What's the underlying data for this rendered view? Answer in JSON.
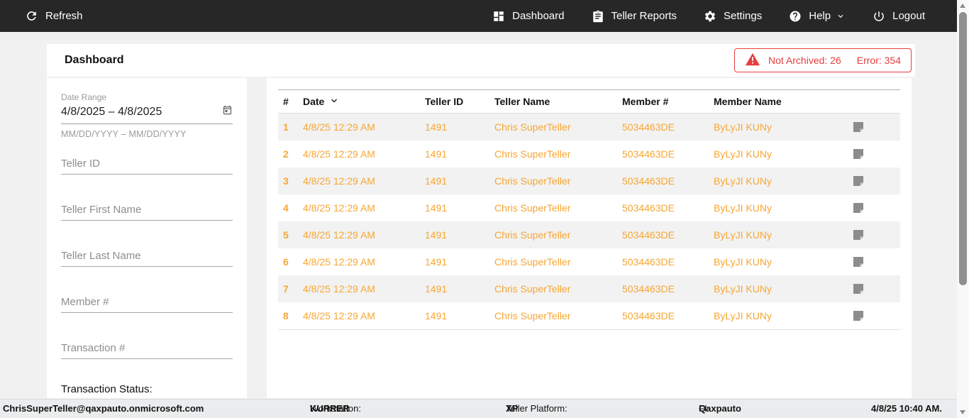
{
  "navbar": {
    "refresh_label": "Refresh",
    "dashboard_label": "Dashboard",
    "teller_reports_label": "Teller Reports",
    "settings_label": "Settings",
    "help_label": "Help",
    "logout_label": "Logout"
  },
  "header": {
    "title": "Dashboard",
    "alert": {
      "not_archived": "Not Archived: 26",
      "error": "Error: 354"
    }
  },
  "sidebar": {
    "date_range": {
      "label": "Date Range",
      "value": "4/8/2025 – 4/8/2025",
      "hint": "MM/DD/YYYY – MM/DD/YYYY"
    },
    "filters": {
      "teller_id_placeholder": "Teller ID",
      "teller_first_name_placeholder": "Teller First Name",
      "teller_last_name_placeholder": "Teller Last Name",
      "member_number_placeholder": "Member #",
      "transaction_number_placeholder": "Transaction #"
    },
    "transaction_status_label": "Transaction Status:"
  },
  "table": {
    "columns": {
      "num": "#",
      "date": "Date",
      "teller_id": "Teller ID",
      "teller_name": "Teller Name",
      "member_num": "Member #",
      "member_name": "Member Name"
    },
    "rows": [
      {
        "num": "1",
        "date": "4/8/25 12:29 AM",
        "teller_id": "1491",
        "teller_name": "Chris SuperTeller",
        "member_num": "5034463DE",
        "member_name": "ByLyJI KUNy"
      },
      {
        "num": "2",
        "date": "4/8/25 12:29 AM",
        "teller_id": "1491",
        "teller_name": "Chris SuperTeller",
        "member_num": "5034463DE",
        "member_name": "ByLyJI KUNy"
      },
      {
        "num": "3",
        "date": "4/8/25 12:29 AM",
        "teller_id": "1491",
        "teller_name": "Chris SuperTeller",
        "member_num": "5034463DE",
        "member_name": "ByLyJI KUNy"
      },
      {
        "num": "4",
        "date": "4/8/25 12:29 AM",
        "teller_id": "1491",
        "teller_name": "Chris SuperTeller",
        "member_num": "5034463DE",
        "member_name": "ByLyJI KUNy"
      },
      {
        "num": "5",
        "date": "4/8/25 12:29 AM",
        "teller_id": "1491",
        "teller_name": "Chris SuperTeller",
        "member_num": "5034463DE",
        "member_name": "ByLyJI KUNy"
      },
      {
        "num": "6",
        "date": "4/8/25 12:29 AM",
        "teller_id": "1491",
        "teller_name": "Chris SuperTeller",
        "member_num": "5034463DE",
        "member_name": "ByLyJI KUNy"
      },
      {
        "num": "7",
        "date": "4/8/25 12:29 AM",
        "teller_id": "1491",
        "teller_name": "Chris SuperTeller",
        "member_num": "5034463DE",
        "member_name": "ByLyJI KUNy"
      },
      {
        "num": "8",
        "date": "4/8/25 12:29 AM",
        "teller_id": "1491",
        "teller_name": "Chris SuperTeller",
        "member_num": "5034463DE",
        "member_name": "ByLyJI KUNy"
      }
    ]
  },
  "statusbar": {
    "user_email": "ChrisSuperTeller@qaxpauto.onmicrosoft.com",
    "workstation_label": "Workstation: ",
    "workstation_value": "KURRER",
    "platform_label": "Teller Platform: ",
    "platform_value": "XP",
    "fi_label": "FI: ",
    "fi_value": "Qaxpauto",
    "datetime": "4/8/25 10:40 AM."
  },
  "icons": {
    "refresh": "refresh-icon",
    "dashboard": "dashboard-grid-icon",
    "teller_reports": "clipboard-icon",
    "settings": "gear-icon",
    "help": "help-circle-icon",
    "help_chevron": "chevron-down-icon",
    "logout": "power-icon",
    "alert": "warning-triangle-icon",
    "date_picker": "calendar-icon",
    "sort": "sort-chevron-down-icon",
    "row_note": "note-icon"
  },
  "colors": {
    "navbar_bg": "#272727",
    "accent_orange": "#f7a633",
    "alert_red": "#e63e3e",
    "row_stripe": "#f2f2f2",
    "page_bg": "#f1f1f1"
  }
}
